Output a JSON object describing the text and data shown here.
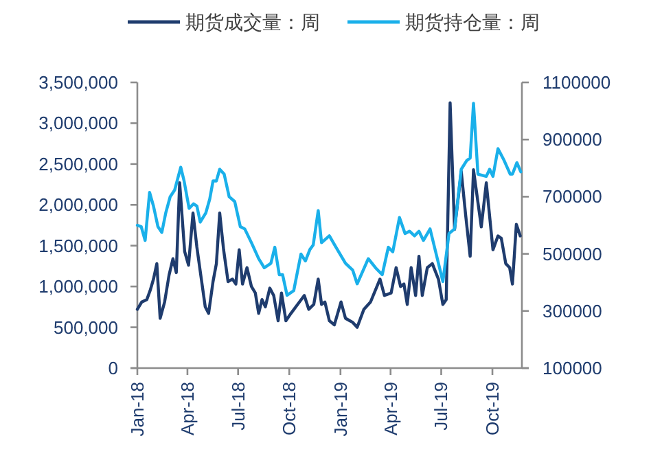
{
  "chart_data": {
    "type": "line",
    "legend": "top",
    "grid": false,
    "xlim": [
      "2018-01-01",
      "2019-11-23"
    ],
    "xticks": [
      {
        "value": "2018-01-01",
        "label": "Jan-18"
      },
      {
        "value": "2018-04-01",
        "label": "Apr-18"
      },
      {
        "value": "2018-07-01",
        "label": "Jul-18"
      },
      {
        "value": "2018-10-01",
        "label": "Oct-18"
      },
      {
        "value": "2019-01-01",
        "label": "Jan-19"
      },
      {
        "value": "2019-04-01",
        "label": "Apr-19"
      },
      {
        "value": "2019-07-01",
        "label": "Jul-19"
      },
      {
        "value": "2019-10-01",
        "label": "Oct-19"
      }
    ],
    "ylim": [
      0,
      3500000
    ],
    "yticks": [
      0,
      {
        "value": 500000,
        "label": "500,000"
      },
      {
        "value": 1000000,
        "label": "1,000,000"
      },
      {
        "value": 1500000,
        "label": "1,500,000"
      },
      {
        "value": 2000000,
        "label": "2,000,000"
      },
      {
        "value": 2500000,
        "label": "2,500,000"
      },
      {
        "value": 3000000,
        "label": "3,000,000"
      },
      {
        "value": 3500000,
        "label": "3,500,000"
      }
    ],
    "y2lim": [
      100000,
      1100000
    ],
    "y2ticks": [
      100000,
      300000,
      500000,
      700000,
      900000,
      1100000
    ],
    "series": [
      {
        "name": "期货成交量：周",
        "color": "#1f3c6e",
        "x": [
          "2018-01-01",
          "2018-01-09",
          "2018-01-18",
          "2018-01-24",
          "2018-01-30",
          "2018-02-05",
          "2018-02-11",
          "2018-02-19",
          "2018-02-27",
          "2018-03-06",
          "2018-03-12",
          "2018-03-18",
          "2018-03-27",
          "2018-04-03",
          "2018-04-11",
          "2018-04-18",
          "2018-04-26",
          "2018-05-03",
          "2018-05-09",
          "2018-05-17",
          "2018-05-23",
          "2018-05-29",
          "2018-06-05",
          "2018-06-13",
          "2018-06-21",
          "2018-06-27",
          "2018-07-03",
          "2018-07-09",
          "2018-07-17",
          "2018-07-25",
          "2018-08-01",
          "2018-08-07",
          "2018-08-13",
          "2018-08-19",
          "2018-08-27",
          "2018-09-03",
          "2018-09-11",
          "2018-09-17",
          "2018-09-25",
          "2018-10-04",
          "2018-10-16",
          "2018-10-28",
          "2018-11-05",
          "2018-11-14",
          "2018-11-22",
          "2018-11-28",
          "2018-12-04",
          "2018-12-12",
          "2018-12-21",
          "2019-01-02",
          "2019-01-10",
          "2019-01-23",
          "2019-01-31",
          "2019-02-12",
          "2019-02-24",
          "2019-03-13",
          "2019-03-21",
          "2019-04-02",
          "2019-04-11",
          "2019-04-19",
          "2019-04-25",
          "2019-05-01",
          "2019-05-08",
          "2019-05-16",
          "2019-05-22",
          "2019-05-28",
          "2019-06-06",
          "2019-06-15",
          "2019-06-26",
          "2019-07-04",
          "2019-07-10",
          "2019-07-17",
          "2019-07-25",
          "2019-08-06",
          "2019-08-14",
          "2019-08-22",
          "2019-08-28",
          "2019-09-11",
          "2019-09-20",
          "2019-10-02",
          "2019-10-11",
          "2019-10-17",
          "2019-10-25",
          "2019-11-01",
          "2019-11-06",
          "2019-11-13",
          "2019-11-20"
        ],
        "values": [
          720000,
          810000,
          840000,
          950000,
          1090000,
          1280000,
          610000,
          810000,
          1140000,
          1340000,
          1170000,
          2270000,
          1430000,
          1260000,
          1900000,
          1480000,
          1090000,
          750000,
          670000,
          1060000,
          1280000,
          1900000,
          1450000,
          1060000,
          1090000,
          1030000,
          1450000,
          1030000,
          1230000,
          1000000,
          920000,
          670000,
          840000,
          750000,
          980000,
          890000,
          580000,
          920000,
          580000,
          670000,
          780000,
          890000,
          720000,
          780000,
          1090000,
          780000,
          810000,
          580000,
          530000,
          810000,
          610000,
          560000,
          500000,
          720000,
          810000,
          1090000,
          890000,
          920000,
          1230000,
          1000000,
          1030000,
          780000,
          1230000,
          890000,
          1370000,
          890000,
          1230000,
          1280000,
          1090000,
          780000,
          840000,
          3250000,
          1700000,
          2410000,
          1870000,
          1370000,
          2430000,
          1730000,
          2270000,
          1450000,
          1620000,
          1590000,
          1280000,
          1230000,
          1030000,
          1760000,
          1620000
        ]
      },
      {
        "name": "期货持仓量：周",
        "color": "#1ab0ea",
        "axis": "y2",
        "x": [
          "2018-01-01",
          "2018-01-08",
          "2018-01-15",
          "2018-01-23",
          "2018-01-30",
          "2018-02-07",
          "2018-02-14",
          "2018-02-21",
          "2018-03-01",
          "2018-03-09",
          "2018-03-20",
          "2018-03-26",
          "2018-04-04",
          "2018-04-12",
          "2018-04-18",
          "2018-04-24",
          "2018-05-04",
          "2018-05-11",
          "2018-05-17",
          "2018-05-23",
          "2018-05-29",
          "2018-06-06",
          "2018-06-15",
          "2018-06-25",
          "2018-07-05",
          "2018-07-13",
          "2018-07-25",
          "2018-08-07",
          "2018-08-17",
          "2018-08-29",
          "2018-09-05",
          "2018-09-13",
          "2018-09-19",
          "2018-09-27",
          "2018-10-09",
          "2018-10-22",
          "2018-10-30",
          "2018-11-07",
          "2018-11-13",
          "2018-11-22",
          "2018-11-28",
          "2018-12-12",
          "2018-12-24",
          "2019-01-10",
          "2019-01-23",
          "2019-01-31",
          "2019-02-20",
          "2019-03-05",
          "2019-03-17",
          "2019-03-28",
          "2019-04-05",
          "2019-04-17",
          "2019-04-27",
          "2019-05-05",
          "2019-05-14",
          "2019-05-22",
          "2019-05-30",
          "2019-06-11",
          "2019-06-23",
          "2019-07-04",
          "2019-07-15",
          "2019-07-25",
          "2019-08-06",
          "2019-08-16",
          "2019-08-22",
          "2019-08-28",
          "2019-09-05",
          "2019-09-20",
          "2019-09-26",
          "2019-10-02",
          "2019-10-11",
          "2019-10-22",
          "2019-11-02",
          "2019-11-06",
          "2019-11-14",
          "2019-11-21"
        ],
        "values": [
          600000,
          595000,
          547000,
          715000,
          667000,
          595000,
          575000,
          643000,
          700000,
          723000,
          803000,
          755000,
          659000,
          675000,
          667000,
          611000,
          643000,
          691000,
          755000,
          755000,
          796000,
          779000,
          700000,
          683000,
          595000,
          587000,
          539000,
          483000,
          451000,
          467000,
          523000,
          427000,
          427000,
          355000,
          371000,
          499000,
          475000,
          515000,
          531000,
          651000,
          539000,
          563000,
          523000,
          467000,
          443000,
          395000,
          483000,
          451000,
          427000,
          523000,
          507000,
          627000,
          571000,
          579000,
          563000,
          579000,
          547000,
          587000,
          491000,
          403000,
          571000,
          587000,
          796000,
          827000,
          835000,
          1027000,
          779000,
          771000,
          796000,
          771000,
          868000,
          827000,
          779000,
          779000,
          819000,
          787000
        ]
      }
    ]
  }
}
